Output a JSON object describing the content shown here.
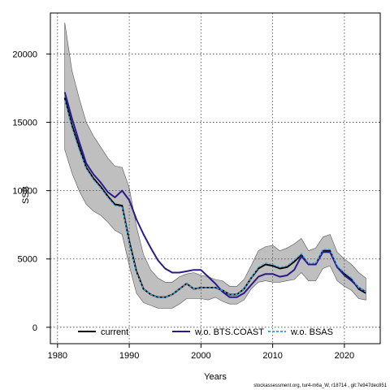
{
  "chart_data": {
    "type": "line",
    "xlabel": "Years",
    "ylabel": "SSB",
    "xlim": [
      1979,
      2025
    ],
    "ylim": [
      -1200,
      23000
    ],
    "x_ticks": [
      1980,
      1990,
      2000,
      2010,
      2020
    ],
    "y_ticks": [
      0,
      5000,
      10000,
      15000,
      20000
    ],
    "grid": true,
    "legend_position": "bottom",
    "band": {
      "x": [
        1981,
        1982,
        1983,
        1984,
        1985,
        1986,
        1987,
        1988,
        1989,
        1990,
        1991,
        1992,
        1993,
        1994,
        1995,
        1996,
        1997,
        1998,
        1999,
        2000,
        2001,
        2002,
        2003,
        2004,
        2005,
        2006,
        2007,
        2008,
        2009,
        2010,
        2011,
        2012,
        2013,
        2014,
        2015,
        2016,
        2017,
        2018,
        2019,
        2020,
        2021,
        2022,
        2023
      ],
      "upper": [
        22300,
        18800,
        16800,
        15000,
        14000,
        13200,
        12400,
        11800,
        11700,
        10200,
        7400,
        5300,
        4200,
        3600,
        3300,
        3300,
        3700,
        3900,
        4000,
        3800,
        3700,
        3500,
        3400,
        3000,
        3000,
        3500,
        4500,
        5600,
        5900,
        6000,
        5600,
        5800,
        6100,
        6500,
        5600,
        5800,
        6600,
        6800,
        5500,
        5000,
        4600,
        4000,
        3600
      ],
      "lower": [
        13000,
        11300,
        10000,
        9000,
        8500,
        8200,
        7700,
        7100,
        6800,
        4500,
        2500,
        1800,
        1600,
        1400,
        1400,
        1400,
        1700,
        2100,
        2100,
        2100,
        2000,
        2200,
        1900,
        1700,
        1700,
        2000,
        2800,
        3300,
        3400,
        3300,
        3300,
        3400,
        3500,
        4000,
        3400,
        3400,
        4300,
        4500,
        3400,
        3000,
        2700,
        2100,
        2000
      ]
    },
    "series": [
      {
        "name": "current",
        "color": "#000000",
        "style": "solid",
        "x": [
          1981,
          1982,
          1983,
          1984,
          1985,
          1986,
          1987,
          1988,
          1989,
          1990,
          1991,
          1992,
          1993,
          1994,
          1995,
          1996,
          1997,
          1998,
          1999,
          2000,
          2001,
          2002,
          2003,
          2004,
          2005,
          2006,
          2007,
          2008,
          2009,
          2010,
          2011,
          2012,
          2013,
          2014,
          2015,
          2016,
          2017,
          2018,
          2019,
          2020,
          2021,
          2022,
          2023
        ],
        "values": [
          16800,
          14800,
          13200,
          11700,
          10900,
          10300,
          9600,
          9000,
          8900,
          6300,
          4100,
          2800,
          2400,
          2200,
          2200,
          2400,
          2800,
          3200,
          2800,
          2900,
          2900,
          2900,
          2700,
          2400,
          2400,
          2800,
          3600,
          4300,
          4600,
          4500,
          4300,
          4400,
          4800,
          5300,
          4600,
          4600,
          5600,
          5600,
          4400,
          3900,
          3500,
          2800,
          2500
        ]
      },
      {
        "name": "w.o. BTS.COAST",
        "color": "#2a1a8a",
        "style": "solid",
        "x": [
          1981,
          1982,
          1983,
          1984,
          1985,
          1986,
          1987,
          1988,
          1989,
          1990,
          1991,
          1992,
          1993,
          1994,
          1995,
          1996,
          1997,
          1998,
          1999,
          2000,
          2001,
          2002,
          2003,
          2004,
          2005,
          2006,
          2007,
          2008,
          2009,
          2010,
          2011,
          2012,
          2013,
          2014,
          2015,
          2016,
          2017,
          2018,
          2019,
          2020,
          2021,
          2022,
          2023
        ],
        "values": [
          17200,
          15300,
          13600,
          12000,
          11200,
          10600,
          9900,
          9500,
          10000,
          9300,
          7900,
          6800,
          5800,
          4900,
          4300,
          4000,
          4000,
          4100,
          4200,
          4200,
          3700,
          3200,
          2600,
          2200,
          2200,
          2500,
          3100,
          3700,
          3900,
          3900,
          3700,
          3800,
          4200,
          5200,
          4600,
          4600,
          5500,
          5500,
          4400,
          3800,
          3400,
          2900,
          2600
        ]
      },
      {
        "name": "w.o. BSAS",
        "color": "#3fa8e0",
        "style": "dashed",
        "x": [
          1981,
          1982,
          1983,
          1984,
          1985,
          1986,
          1987,
          1988,
          1989,
          1990,
          1991,
          1992,
          1993,
          1994,
          1995,
          1996,
          1997,
          1998,
          1999,
          2000,
          2001,
          2002,
          2003,
          2004,
          2005,
          2006,
          2007,
          2008,
          2009,
          2010,
          2011,
          2012,
          2013,
          2014,
          2015,
          2016,
          2017,
          2018,
          2019,
          2020,
          2021,
          2022,
          2023
        ],
        "values": [
          16600,
          14600,
          13000,
          11600,
          10800,
          10200,
          9500,
          8900,
          8800,
          6200,
          4000,
          2800,
          2400,
          2200,
          2200,
          2400,
          2800,
          3200,
          2800,
          2900,
          2900,
          2900,
          2700,
          2400,
          2400,
          2800,
          3600,
          4400,
          4700,
          4600,
          4400,
          4500,
          4900,
          5400,
          4700,
          4700,
          5700,
          5700,
          4500,
          4000,
          3600,
          2900,
          2600
        ]
      }
    ],
    "legend": [
      {
        "label": "current",
        "color": "#000000",
        "style": "solid"
      },
      {
        "label": "w.o. BTS.COAST",
        "color": "#2a1a8a",
        "style": "solid"
      },
      {
        "label": "w.o. BSAS",
        "color": "#3fa8e0",
        "style": "dashed"
      }
    ],
    "band_color": "#bfbfbf",
    "footer": "stockassessment.org, tur4-m6a_W, r18714 , git:7e947dec851"
  }
}
